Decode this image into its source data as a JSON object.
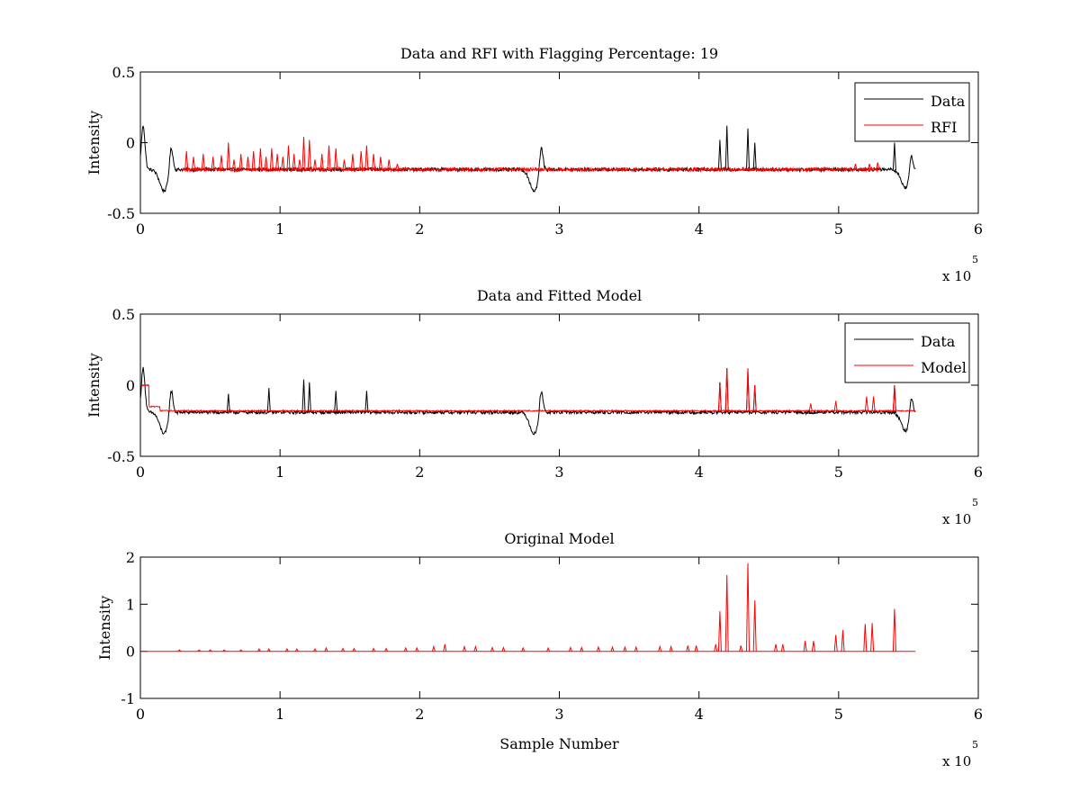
{
  "figure": {
    "title": "",
    "background": "#ffffff"
  },
  "chart_data": [
    {
      "type": "line",
      "title": "Data and RFI with Flagging Percentage: 19",
      "xlabel": "",
      "ylabel": "Intensity",
      "xlim": [
        0,
        6
      ],
      "ylim": [
        -0.5,
        0.5
      ],
      "x_multiplier": "x 10",
      "x_multiplier_exponent": "5",
      "x_ticks": [
        "0",
        "1",
        "2",
        "3",
        "4",
        "5",
        "6"
      ],
      "y_ticks": [
        "-0.5",
        "0",
        "0.5"
      ],
      "grid": false,
      "legend_position": "top-right",
      "series": [
        {
          "name": "Data",
          "color": "#000000",
          "baseline": -0.19,
          "noise": 0.012,
          "dips": [
            [
              0.17,
              -0.34
            ],
            [
              2.82,
              -0.34
            ],
            [
              5.48,
              -0.32
            ]
          ],
          "bumps": [
            [
              0.02,
              0.12
            ],
            [
              0.22,
              0.0
            ],
            [
              2.87,
              0.0
            ],
            [
              5.52,
              -0.04
            ]
          ],
          "spikes": [
            [
              4.15,
              0.02
            ],
            [
              4.2,
              0.12
            ],
            [
              4.35,
              0.1
            ],
            [
              4.4,
              0.0
            ],
            [
              5.4,
              0.0
            ]
          ],
          "x_range": [
            0,
            5.55
          ]
        },
        {
          "name": "RFI",
          "color": "#ff0000",
          "baseline": -0.19,
          "noise": 0.012,
          "spikes": [
            [
              0.33,
              -0.06
            ],
            [
              0.38,
              -0.1
            ],
            [
              0.45,
              -0.08
            ],
            [
              0.52,
              -0.1
            ],
            [
              0.58,
              -0.09
            ],
            [
              0.63,
              0.0
            ],
            [
              0.67,
              -0.12
            ],
            [
              0.72,
              -0.08
            ],
            [
              0.77,
              -0.1
            ],
            [
              0.81,
              -0.06
            ],
            [
              0.86,
              -0.04
            ],
            [
              0.9,
              -0.1
            ],
            [
              0.94,
              -0.04
            ],
            [
              0.98,
              -0.08
            ],
            [
              1.02,
              -0.1
            ],
            [
              1.06,
              -0.02
            ],
            [
              1.1,
              -0.08
            ],
            [
              1.14,
              -0.12
            ],
            [
              1.17,
              0.04
            ],
            [
              1.21,
              0.02
            ],
            [
              1.25,
              -0.12
            ],
            [
              1.3,
              -0.08
            ],
            [
              1.35,
              -0.02
            ],
            [
              1.4,
              -0.04
            ],
            [
              1.46,
              -0.12
            ],
            [
              1.52,
              -0.08
            ],
            [
              1.58,
              -0.06
            ],
            [
              1.62,
              -0.02
            ],
            [
              1.67,
              -0.08
            ],
            [
              1.72,
              -0.1
            ],
            [
              1.78,
              -0.12
            ],
            [
              1.84,
              -0.15
            ],
            [
              5.12,
              -0.15
            ],
            [
              5.22,
              -0.15
            ],
            [
              5.28,
              -0.14
            ]
          ],
          "x_range": [
            0.3,
            5.3
          ]
        }
      ]
    },
    {
      "type": "line",
      "title": "Data and Fitted Model",
      "xlabel": "",
      "ylabel": "Intensity",
      "xlim": [
        0,
        6
      ],
      "ylim": [
        -0.5,
        0.5
      ],
      "x_multiplier": "x 10",
      "x_multiplier_exponent": "5",
      "x_ticks": [
        "0",
        "1",
        "2",
        "3",
        "4",
        "5",
        "6"
      ],
      "y_ticks": [
        "-0.5",
        "0",
        "0.5"
      ],
      "grid": false,
      "legend_position": "top-right",
      "series": [
        {
          "name": "Data",
          "color": "#000000",
          "baseline": -0.19,
          "noise": 0.012,
          "dips": [
            [
              0.17,
              -0.34
            ],
            [
              2.82,
              -0.34
            ],
            [
              5.48,
              -0.32
            ]
          ],
          "bumps": [
            [
              0.02,
              0.12
            ],
            [
              0.22,
              0.0
            ],
            [
              2.87,
              0.0
            ],
            [
              5.52,
              -0.04
            ]
          ],
          "spikes": [
            [
              0.63,
              -0.06
            ],
            [
              0.92,
              -0.02
            ],
            [
              1.17,
              0.04
            ],
            [
              1.21,
              0.02
            ],
            [
              1.4,
              -0.04
            ],
            [
              1.62,
              -0.04
            ],
            [
              4.15,
              0.02
            ],
            [
              4.2,
              0.12
            ],
            [
              4.35,
              0.1
            ],
            [
              4.4,
              0.0
            ],
            [
              5.4,
              0.0
            ]
          ],
          "x_range": [
            0,
            5.55
          ]
        },
        {
          "name": "Model",
          "color": "#ff0000",
          "baseline": -0.18,
          "noise": 0.004,
          "step": [
            [
              0.0,
              0.0
            ],
            [
              0.06,
              -0.15
            ]
          ],
          "spikes": [
            [
              4.15,
              0.0
            ],
            [
              4.2,
              0.12
            ],
            [
              4.35,
              0.12
            ],
            [
              4.4,
              0.0
            ],
            [
              4.8,
              -0.13
            ],
            [
              4.98,
              -0.11
            ],
            [
              5.2,
              -0.08
            ],
            [
              5.25,
              -0.08
            ],
            [
              5.4,
              0.0
            ]
          ],
          "x_range": [
            0,
            5.55
          ]
        }
      ]
    },
    {
      "type": "line",
      "title": "Original Model",
      "xlabel": "Sample Number",
      "ylabel": "Intensity",
      "xlim": [
        0,
        6
      ],
      "ylim": [
        -1,
        2
      ],
      "x_multiplier": "x 10",
      "x_multiplier_exponent": "5",
      "x_ticks": [
        "0",
        "1",
        "2",
        "3",
        "4",
        "5",
        "6"
      ],
      "y_ticks": [
        "-1",
        "0",
        "1",
        "2"
      ],
      "grid": false,
      "series": [
        {
          "name": "",
          "color": "#ff0000",
          "baseline": 0.0,
          "noise": 0.0,
          "spikes": [
            [
              0.28,
              0.03
            ],
            [
              0.42,
              0.03
            ],
            [
              0.5,
              0.03
            ],
            [
              0.6,
              0.03
            ],
            [
              0.72,
              0.03
            ],
            [
              0.85,
              0.05
            ],
            [
              0.92,
              0.05
            ],
            [
              1.05,
              0.05
            ],
            [
              1.12,
              0.05
            ],
            [
              1.25,
              0.05
            ],
            [
              1.33,
              0.07
            ],
            [
              1.45,
              0.06
            ],
            [
              1.53,
              0.06
            ],
            [
              1.67,
              0.06
            ],
            [
              1.76,
              0.06
            ],
            [
              1.9,
              0.07
            ],
            [
              1.98,
              0.07
            ],
            [
              2.1,
              0.1
            ],
            [
              2.18,
              0.15
            ],
            [
              2.32,
              0.1
            ],
            [
              2.4,
              0.1
            ],
            [
              2.52,
              0.08
            ],
            [
              2.6,
              0.08
            ],
            [
              2.74,
              0.07
            ],
            [
              2.92,
              0.07
            ],
            [
              3.08,
              0.08
            ],
            [
              3.16,
              0.08
            ],
            [
              3.28,
              0.09
            ],
            [
              3.38,
              0.09
            ],
            [
              3.47,
              0.09
            ],
            [
              3.55,
              0.09
            ],
            [
              3.72,
              0.1
            ],
            [
              3.8,
              0.1
            ],
            [
              3.92,
              0.12
            ],
            [
              3.98,
              0.12
            ],
            [
              4.12,
              0.15
            ],
            [
              4.15,
              0.85
            ],
            [
              4.2,
              1.62
            ],
            [
              4.3,
              0.12
            ],
            [
              4.35,
              1.87
            ],
            [
              4.4,
              1.08
            ],
            [
              4.55,
              0.15
            ],
            [
              4.6,
              0.15
            ],
            [
              4.76,
              0.22
            ],
            [
              4.82,
              0.22
            ],
            [
              4.98,
              0.35
            ],
            [
              5.03,
              0.45
            ],
            [
              5.19,
              0.58
            ],
            [
              5.24,
              0.6
            ],
            [
              5.4,
              0.9
            ]
          ],
          "x_range": [
            0,
            5.55
          ]
        }
      ]
    }
  ]
}
